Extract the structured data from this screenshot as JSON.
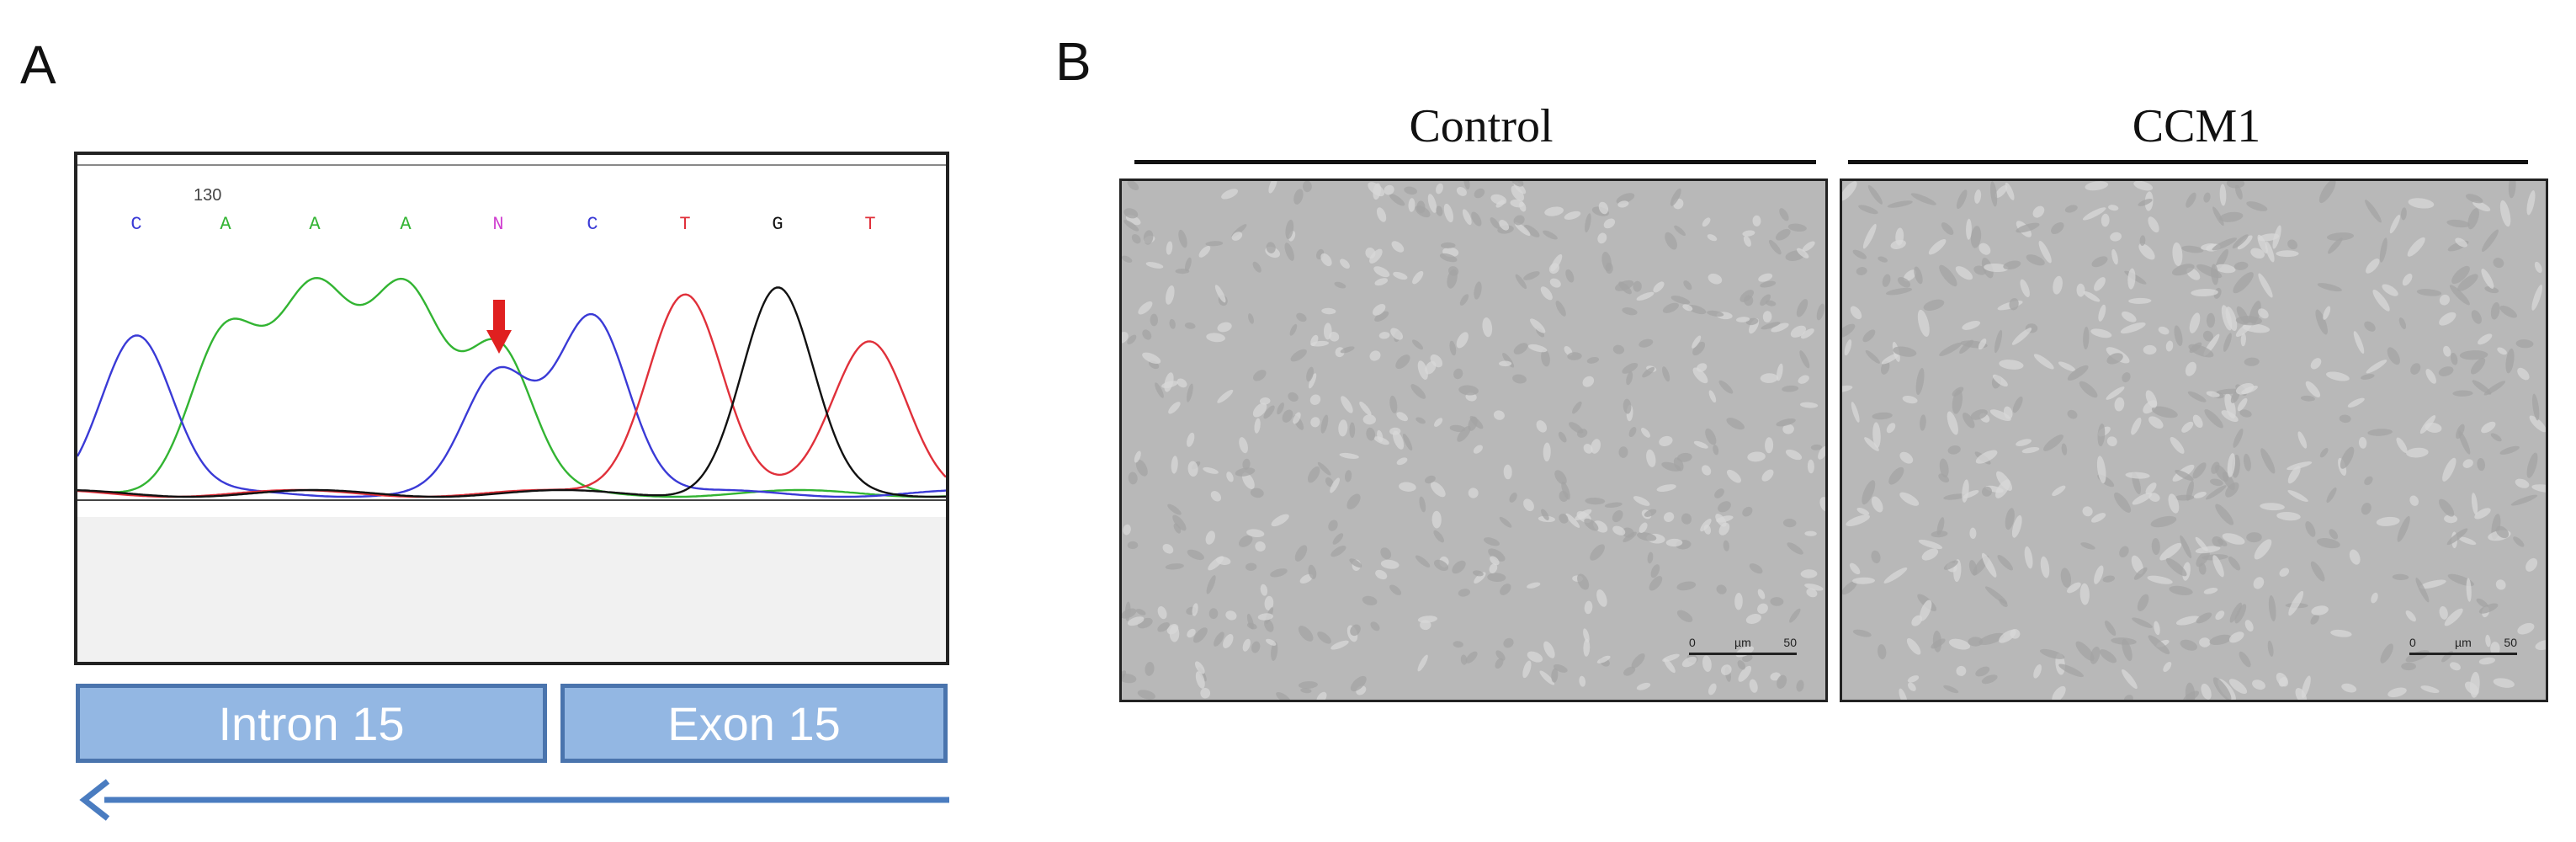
{
  "panel_a": {
    "letter": "A",
    "position_label": "130",
    "bases": [
      "C",
      "A",
      "A",
      "A",
      "N",
      "C",
      "T",
      "G",
      "T"
    ],
    "base_colors": {
      "A": "#32b432",
      "C": "#3a3ad6",
      "G": "#111111",
      "T": "#e0303a",
      "N": "#d040d0"
    },
    "mutation_marker": "red-down-arrow-icon",
    "intron_label": "Intron 15",
    "exon_label": "Exon 15",
    "direction": "right-to-left",
    "segment_fill": "#93b7e3",
    "segment_border": "#4a74ad"
  },
  "panel_b": {
    "letter": "B",
    "control_label": "Control",
    "ccm1_label": "CCM1",
    "scale_zero": "0",
    "scale_unit": "µm",
    "scale_max": "50"
  }
}
